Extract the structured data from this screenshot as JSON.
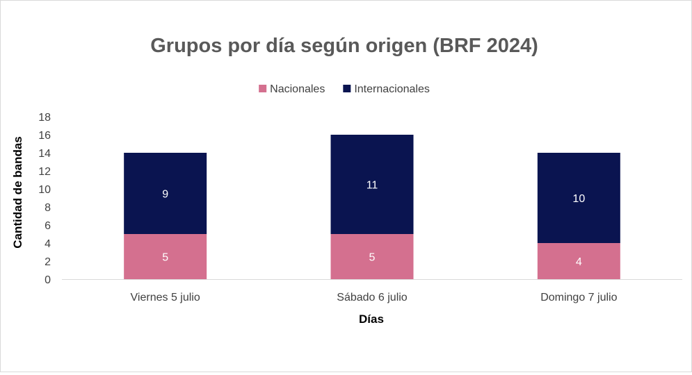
{
  "chart_data": {
    "type": "bar",
    "stacked": true,
    "title": "Grupos por día según origen (BRF 2024)",
    "xlabel": "Días",
    "ylabel": "Cantidad de bandas",
    "categories": [
      "Viernes 5 julio",
      "Sábado 6 julio",
      "Domingo 7 julio"
    ],
    "series": [
      {
        "name": "Nacionales",
        "values": [
          5,
          5,
          4
        ],
        "color": "#d4708f",
        "label_color": "#ffffff"
      },
      {
        "name": "Internacionales",
        "values": [
          9,
          11,
          10
        ],
        "color": "#0a1450",
        "label_color": "#ffffff"
      }
    ],
    "ylim": [
      0,
      18
    ],
    "yticks": [
      0,
      2,
      4,
      6,
      8,
      10,
      12,
      14,
      16,
      18
    ],
    "grid": false,
    "legend": "top-center",
    "data_labels": true
  }
}
